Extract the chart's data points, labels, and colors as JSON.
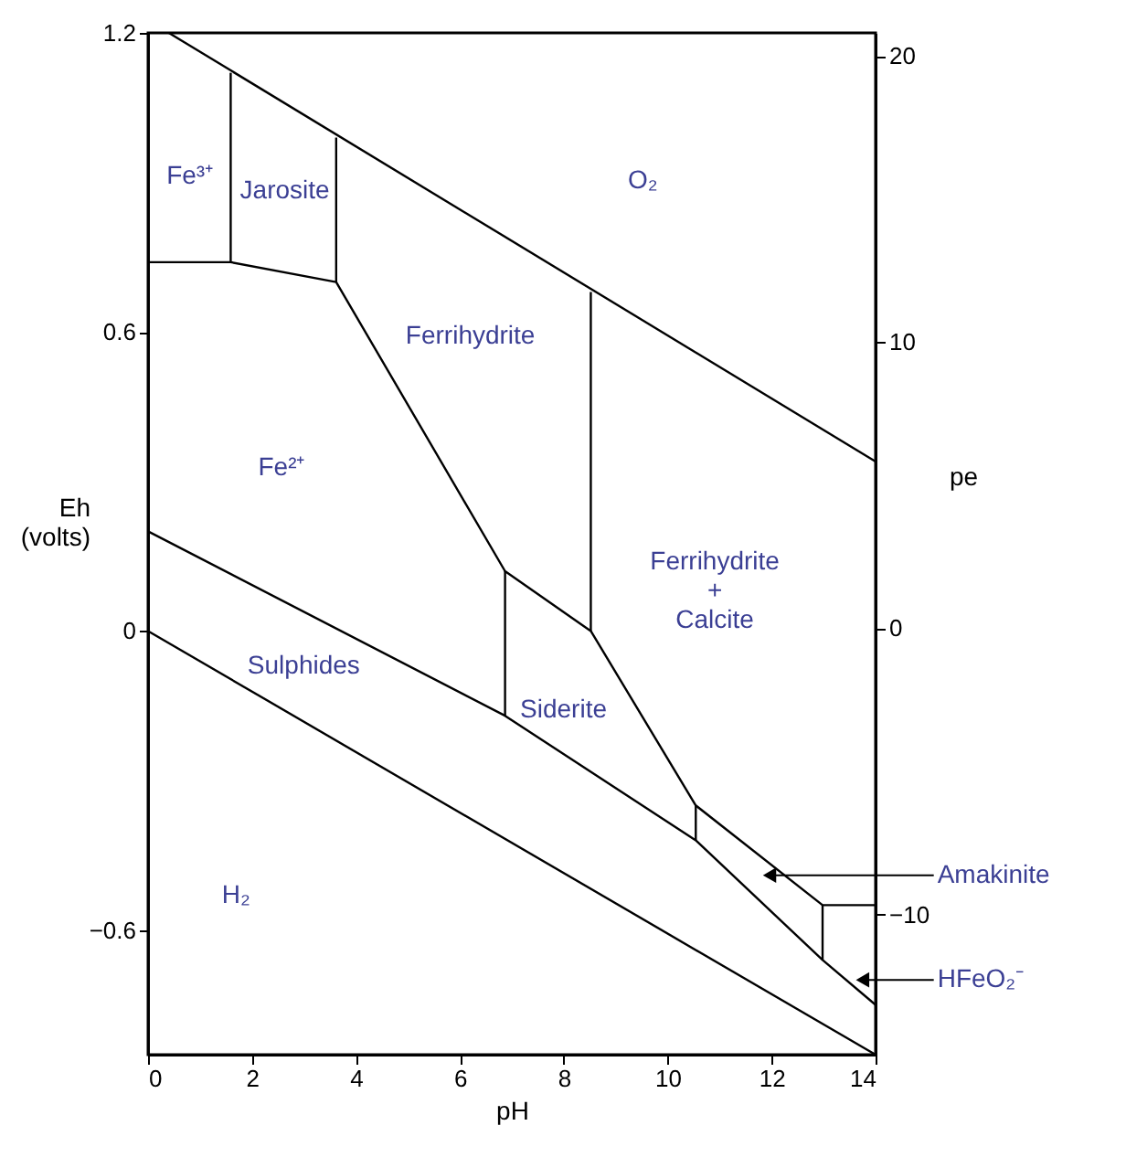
{
  "chart_data": {
    "type": "line",
    "xlabel": "pH",
    "ylabel": "Eh (volts)",
    "y2label": "pe",
    "xlim": [
      0,
      14
    ],
    "xticks": [
      0,
      2,
      4,
      6,
      8,
      10,
      12,
      14
    ],
    "ylim": [
      -0.85,
      1.2
    ],
    "yticks": [
      -0.6,
      0,
      0.6,
      1.2
    ],
    "y2lim": [
      -14.9,
      20.8
    ],
    "y2ticks": [
      -10,
      0,
      10,
      20
    ],
    "grid": false,
    "legend": false,
    "series": [
      {
        "color": "#000000",
        "x": [
          0.4,
          14
        ],
        "values": [
          1.2,
          0.34
        ]
      },
      {
        "color": "#000000",
        "x": [
          0,
          14
        ],
        "values": [
          0,
          -0.85
        ]
      },
      {
        "color": "#000000",
        "x": [
          0,
          1.59,
          3.62,
          6.87,
          8.52,
          10.54,
          12.98,
          14
        ],
        "values": [
          0.74,
          0.74,
          0.7,
          0.12,
          0,
          -0.35,
          -0.55,
          -0.55
        ]
      },
      {
        "color": "#000000",
        "x": [
          1.59,
          1.59
        ],
        "values": [
          0.74,
          1.12
        ]
      },
      {
        "color": "#000000",
        "x": [
          3.62,
          3.62
        ],
        "values": [
          0.7,
          0.99
        ]
      },
      {
        "color": "#000000",
        "x": [
          8.52,
          8.52
        ],
        "values": [
          0,
          0.68
        ]
      },
      {
        "color": "#000000",
        "x": [
          6.87,
          6.87
        ],
        "values": [
          0.12,
          -0.17
        ]
      },
      {
        "color": "#000000",
        "x": [
          0,
          6.87,
          10.54,
          12.98,
          14
        ],
        "values": [
          0.2,
          -0.17,
          -0.42,
          -0.66,
          -0.75
        ]
      },
      {
        "color": "#000000",
        "x": [
          10.54,
          10.54
        ],
        "values": [
          -0.35,
          -0.42
        ]
      },
      {
        "color": "#000000",
        "x": [
          12.98,
          12.98
        ],
        "values": [
          -0.55,
          -0.66
        ]
      }
    ],
    "annotations": [
      "Fe³⁺",
      "Jarosite",
      "O₂",
      "Ferrihydrite",
      "Fe²⁺",
      "Ferrihydrite\n+\nCalcite",
      "Siderite",
      "Sulphides",
      "H₂",
      {
        "text": "Amakinite",
        "x": 11.96,
        "y": -0.49
      },
      {
        "text": "HFeO₂⁻",
        "x": 13.75,
        "y": -0.7
      }
    ]
  }
}
